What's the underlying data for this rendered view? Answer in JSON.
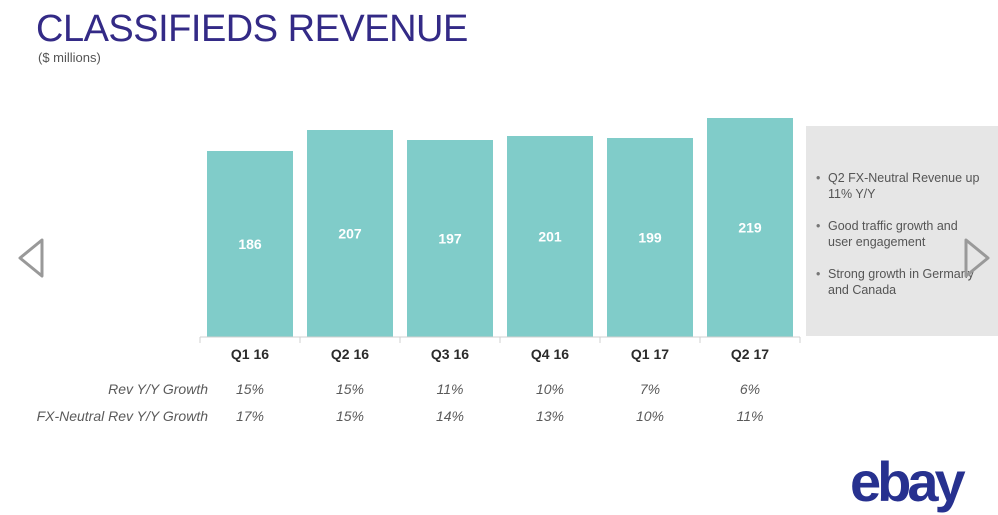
{
  "page": {
    "title": "CLASSIFIEDS REVENUE",
    "subtitle": "($ millions)",
    "logo_text": "ebay"
  },
  "colors": {
    "title": "#332a86",
    "bar": "#80ccc9",
    "panel": "#e6e6e6",
    "logo": "#27318f",
    "arrow": "#999999"
  },
  "chart_data": {
    "type": "bar",
    "title": "CLASSIFIEDS REVENUE",
    "ylabel": "($ millions)",
    "xlabel": "",
    "categories": [
      "Q1 16",
      "Q2 16",
      "Q3 16",
      "Q4 16",
      "Q1 17",
      "Q2 17"
    ],
    "values": [
      186,
      207,
      197,
      201,
      199,
      219
    ],
    "value_labels": [
      "186",
      "207",
      "197",
      "201",
      "199",
      "219"
    ],
    "ylim": [
      0,
      219
    ],
    "grid": false
  },
  "metrics": [
    {
      "label": "Rev Y/Y Growth",
      "values": [
        "15%",
        "15%",
        "11%",
        "10%",
        "7%",
        "6%"
      ]
    },
    {
      "label": "FX-Neutral Rev Y/Y Growth",
      "values": [
        "17%",
        "15%",
        "14%",
        "13%",
        "10%",
        "11%"
      ]
    }
  ],
  "highlights": [
    "Q2 FX-Neutral Revenue up\n11% Y/Y",
    "Good traffic growth and\nuser engagement",
    "Strong growth in Germany\nand Canada"
  ],
  "nav": {
    "prev_icon": "chevron-left-icon",
    "next_icon": "chevron-right-icon"
  }
}
